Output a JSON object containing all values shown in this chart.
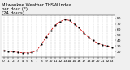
{
  "title": "Milwaukee Weather THSW Index\nper Hour (F)\n(24 Hours)",
  "hours": [
    0,
    1,
    2,
    3,
    4,
    5,
    6,
    7,
    8,
    9,
    10,
    11,
    12,
    13,
    14,
    15,
    16,
    17,
    18,
    19,
    20,
    21,
    22,
    23
  ],
  "values": [
    22,
    21,
    20,
    19,
    18,
    18,
    19,
    22,
    33,
    46,
    58,
    68,
    74,
    78,
    76,
    70,
    63,
    54,
    46,
    40,
    35,
    32,
    30,
    28
  ],
  "line_color": "#cc0000",
  "marker_color": "#000000",
  "bg_color": "#f0f0f0",
  "plot_bg": "#ffffff",
  "ylim": [
    10,
    85
  ],
  "ytick_vals": [
    20,
    30,
    40,
    50,
    60,
    70,
    80
  ],
  "grid_color": "#bbbbbb",
  "title_fontsize": 3.8,
  "tick_fontsize": 3.2,
  "linewidth": 0.55,
  "markersize": 1.0
}
